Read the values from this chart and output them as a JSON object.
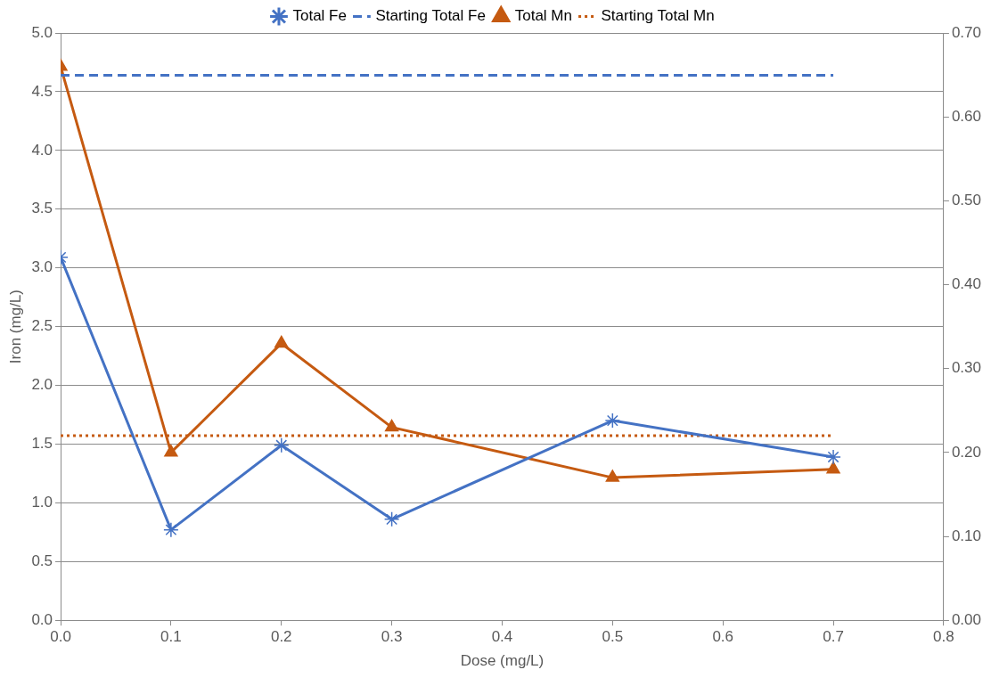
{
  "chart_data": {
    "type": "line",
    "xlabel": "Dose (mg/L)",
    "ylabel": "Iron (mg/L)",
    "xlim": [
      0,
      0.8
    ],
    "xticks": [
      {
        "value": 0,
        "label": "0.0"
      },
      {
        "value": 0.1,
        "label": "0.1"
      },
      {
        "value": 0.2,
        "label": "0.2"
      },
      {
        "value": 0.3,
        "label": "0.3"
      },
      {
        "value": 0.4,
        "label": "0.4"
      },
      {
        "value": 0.5,
        "label": "0.5"
      },
      {
        "value": 0.6,
        "label": "0.6"
      },
      {
        "value": 0.7,
        "label": "0.7"
      },
      {
        "value": 0.8,
        "label": "0.8"
      }
    ],
    "ylim": [
      0,
      5
    ],
    "yticks": [
      {
        "value": 0,
        "label": "0.0"
      },
      {
        "value": 0.5,
        "label": "0.5"
      },
      {
        "value": 1,
        "label": "1.0"
      },
      {
        "value": 1.5,
        "label": "1.5"
      },
      {
        "value": 2,
        "label": "2.0"
      },
      {
        "value": 2.5,
        "label": "2.5"
      },
      {
        "value": 3,
        "label": "3.0"
      },
      {
        "value": 3.5,
        "label": "3.5"
      },
      {
        "value": 4,
        "label": "4.0"
      },
      {
        "value": 4.5,
        "label": "4.5"
      },
      {
        "value": 5,
        "label": "5.0"
      }
    ],
    "y2lim": [
      0,
      0.7
    ],
    "y2ticks": [
      {
        "value": 0,
        "label": "0.00"
      },
      {
        "value": 0.1,
        "label": "0.10"
      },
      {
        "value": 0.2,
        "label": "0.20"
      },
      {
        "value": 0.3,
        "label": "0.30"
      },
      {
        "value": 0.4,
        "label": "0.40"
      },
      {
        "value": 0.5,
        "label": "0.50"
      },
      {
        "value": 0.6,
        "label": "0.60"
      },
      {
        "value": 0.7,
        "label": "0.70"
      }
    ],
    "grid": "y",
    "legend": "top",
    "series": [
      {
        "name": "Total Fe",
        "color": "#4472c4",
        "x": [
          0,
          0.1,
          0.2,
          0.3,
          0.5,
          0.7
        ],
        "values": [
          3.09,
          0.77,
          1.49,
          0.86,
          1.7,
          1.39
        ],
        "marker": "cross",
        "line_style": "solid"
      },
      {
        "name": "Starting Total Fe",
        "color": "#4472c4",
        "x": [
          0,
          0.7
        ],
        "values": [
          4.64,
          4.64
        ],
        "marker": "none",
        "line_style": "dashed"
      },
      {
        "name": "Total Mn",
        "color": "#c55a11",
        "axis": "y2",
        "x": [
          0,
          0.1,
          0.2,
          0.3,
          0.5,
          0.7
        ],
        "values": [
          0.66,
          0.2,
          0.33,
          0.23,
          0.17,
          0.18
        ],
        "marker": "triangle",
        "line_style": "solid"
      },
      {
        "name": "Starting Total Mn",
        "color": "#c55a11",
        "axis": "y2",
        "x": [
          0,
          0.7
        ],
        "values": [
          0.22,
          0.22
        ],
        "marker": "none",
        "line_style": "dotted"
      }
    ]
  }
}
